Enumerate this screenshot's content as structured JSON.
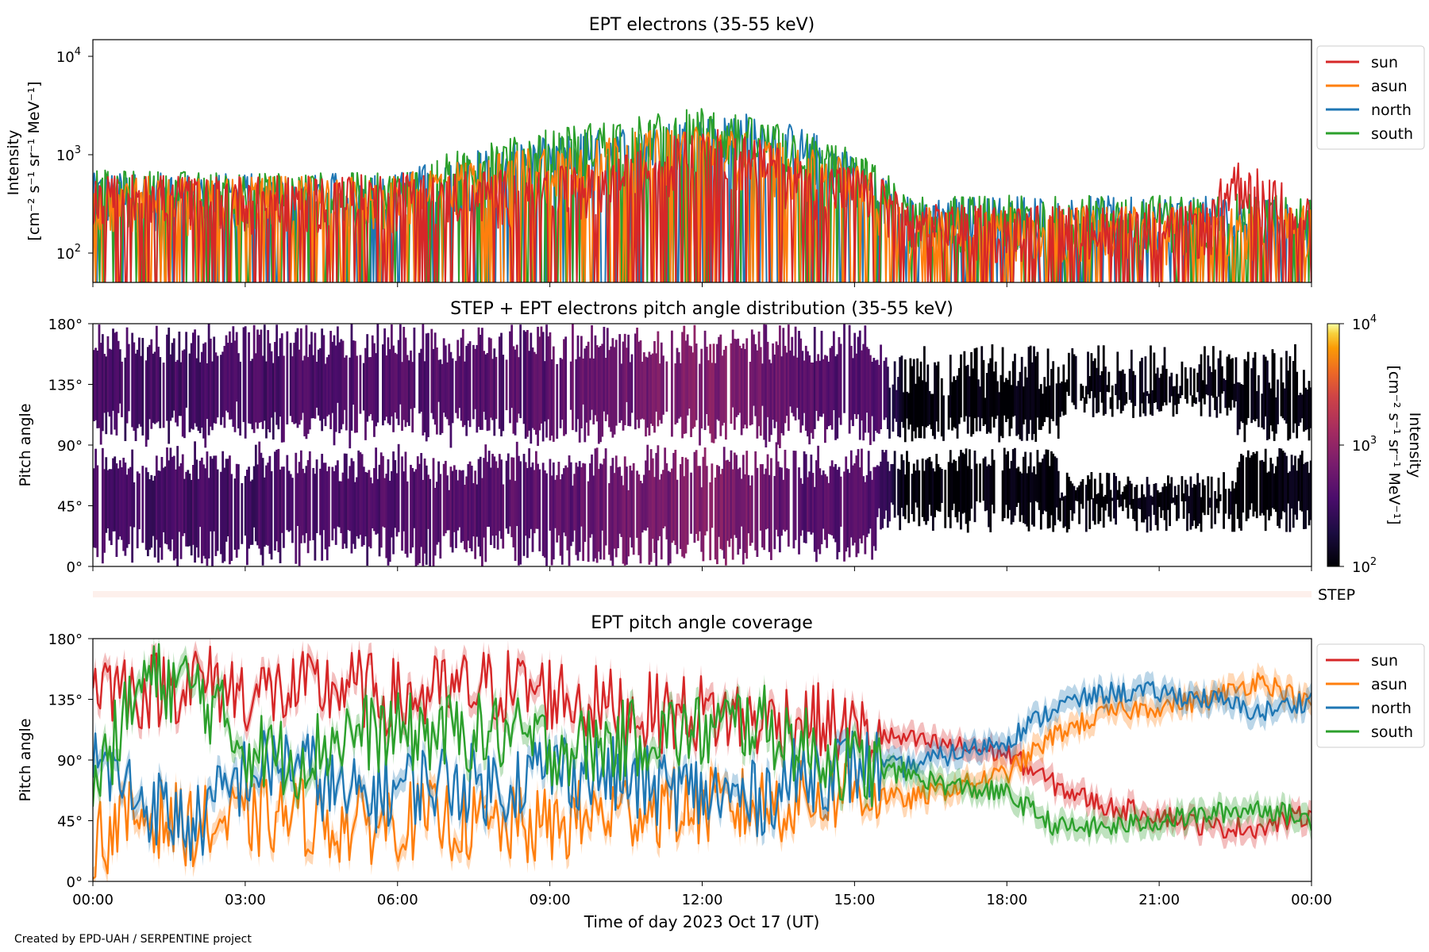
{
  "colors": {
    "sun": "#d62728",
    "asun": "#ff7f0e",
    "north": "#1f77b4",
    "south": "#2ca02c",
    "step_bar": "#fdf0ec"
  },
  "panel1": {
    "title": "EPT electrons (35-55 keV)",
    "ylabel_line1": "Intensity",
    "ylabel_line2": "[cm⁻² s⁻¹ sr⁻¹ MeV⁻¹]",
    "yticks": [
      {
        "base": "10",
        "exp": "2"
      },
      {
        "base": "10",
        "exp": "3"
      },
      {
        "base": "10",
        "exp": "4"
      }
    ],
    "legend": [
      "sun",
      "asun",
      "north",
      "south"
    ]
  },
  "panel2": {
    "title": "STEP + EPT electrons pitch angle distribution (35-55 keV)",
    "ylabel": "Pitch angle",
    "yticks": [
      "0°",
      "45°",
      "90°",
      "135°",
      "180°"
    ],
    "colorbar_label_line1": "Intensity",
    "colorbar_label_line2": "[cm⁻² s⁻¹ sr⁻¹ MeV⁻¹]",
    "colorbar_ticks": [
      {
        "base": "10",
        "exp": "2"
      },
      {
        "base": "10",
        "exp": "3"
      },
      {
        "base": "10",
        "exp": "4"
      }
    ]
  },
  "step_label": "STEP",
  "panel3": {
    "title": "EPT pitch angle coverage",
    "ylabel": "Pitch angle",
    "yticks": [
      "0°",
      "45°",
      "90°",
      "135°",
      "180°"
    ],
    "legend": [
      "sun",
      "asun",
      "north",
      "south"
    ]
  },
  "xaxis": {
    "label": "Time of day 2023 Oct 17 (UT)",
    "ticks": [
      "00:00",
      "03:00",
      "06:00",
      "09:00",
      "12:00",
      "15:00",
      "18:00",
      "21:00",
      "00:00"
    ]
  },
  "credit": "Created by EPD-UAH / SERPENTINE project",
  "chart_data": [
    {
      "type": "line",
      "title": "EPT electrons (35-55 keV)",
      "ylabel": "Intensity [cm⁻² s⁻¹ sr⁻¹ MeV⁻¹]",
      "yscale": "log",
      "ylim": [
        50,
        15000
      ],
      "xlim_hours": [
        0,
        24
      ],
      "legend_position": "outside right",
      "series": [
        {
          "name": "sun",
          "x_hours": [
            0,
            1,
            2,
            3,
            4,
            5,
            6,
            7,
            8,
            9,
            10,
            11,
            11.5,
            12,
            12.5,
            13,
            14,
            15,
            15.3,
            16,
            18,
            20,
            22,
            22.5,
            24
          ],
          "envelope_high": [
            600,
            650,
            600,
            620,
            600,
            620,
            650,
            680,
            700,
            750,
            800,
            1200,
            1600,
            2000,
            1700,
            1500,
            900,
            750,
            700,
            320,
            300,
            320,
            330,
            900,
            350
          ]
        },
        {
          "name": "asun",
          "x_hours": [
            0,
            6,
            12,
            15.3,
            16,
            24
          ],
          "envelope_high": [
            600,
            600,
            2000,
            700,
            300,
            300
          ]
        },
        {
          "name": "north",
          "x_hours": [
            0,
            6,
            12,
            13,
            15.3,
            16,
            24
          ],
          "envelope_high": [
            650,
            650,
            2400,
            2700,
            750,
            380,
            380
          ]
        },
        {
          "name": "south",
          "x_hours": [
            0,
            6,
            12,
            15.3,
            16,
            24
          ],
          "envelope_high": [
            700,
            650,
            3000,
            900,
            380,
            400
          ]
        }
      ]
    },
    {
      "type": "heatmap",
      "title": "STEP + EPT electrons pitch angle distribution (35-55 keV)",
      "ylabel": "Pitch angle",
      "ylim": [
        0,
        180
      ],
      "colorbar": {
        "scale": "log",
        "range": [
          100,
          10000
        ],
        "colormap": "inferno"
      },
      "x_hours": [
        0,
        3,
        6,
        9,
        11,
        12,
        13,
        14,
        15.4,
        16,
        18,
        20,
        22,
        24
      ],
      "mean_intensity": [
        350,
        350,
        400,
        450,
        650,
        800,
        650,
        450,
        400,
        100,
        105,
        110,
        115,
        110
      ]
    },
    {
      "type": "line",
      "title": "EPT pitch angle coverage",
      "ylabel": "Pitch angle",
      "ylim": [
        0,
        180
      ],
      "legend_position": "outside right",
      "x_hours": [
        0,
        1,
        2,
        3,
        4,
        5,
        6,
        7,
        8,
        9,
        10,
        11,
        12,
        13,
        14,
        15,
        16,
        17,
        18,
        19,
        20,
        21,
        22,
        23,
        24
      ],
      "series": [
        {
          "name": "sun",
          "values": [
            150,
            140,
            150,
            140,
            140,
            145,
            135,
            140,
            145,
            140,
            130,
            125,
            125,
            120,
            120,
            110,
            105,
            100,
            95,
            70,
            55,
            50,
            40,
            40,
            50
          ]
        },
        {
          "name": "asun",
          "values": [
            30,
            50,
            40,
            45,
            50,
            40,
            45,
            45,
            40,
            40,
            50,
            55,
            55,
            55,
            60,
            70,
            60,
            70,
            80,
            110,
            125,
            130,
            135,
            150,
            130
          ]
        },
        {
          "name": "north",
          "values": [
            90,
            60,
            40,
            80,
            90,
            60,
            70,
            75,
            70,
            85,
            80,
            70,
            65,
            60,
            80,
            85,
            85,
            95,
            105,
            130,
            140,
            140,
            135,
            125,
            135
          ]
        },
        {
          "name": "south",
          "values": [
            70,
            150,
            145,
            100,
            90,
            110,
            110,
            110,
            110,
            100,
            100,
            110,
            110,
            120,
            100,
            85,
            80,
            70,
            65,
            40,
            40,
            45,
            50,
            55,
            45
          ]
        }
      ]
    }
  ]
}
